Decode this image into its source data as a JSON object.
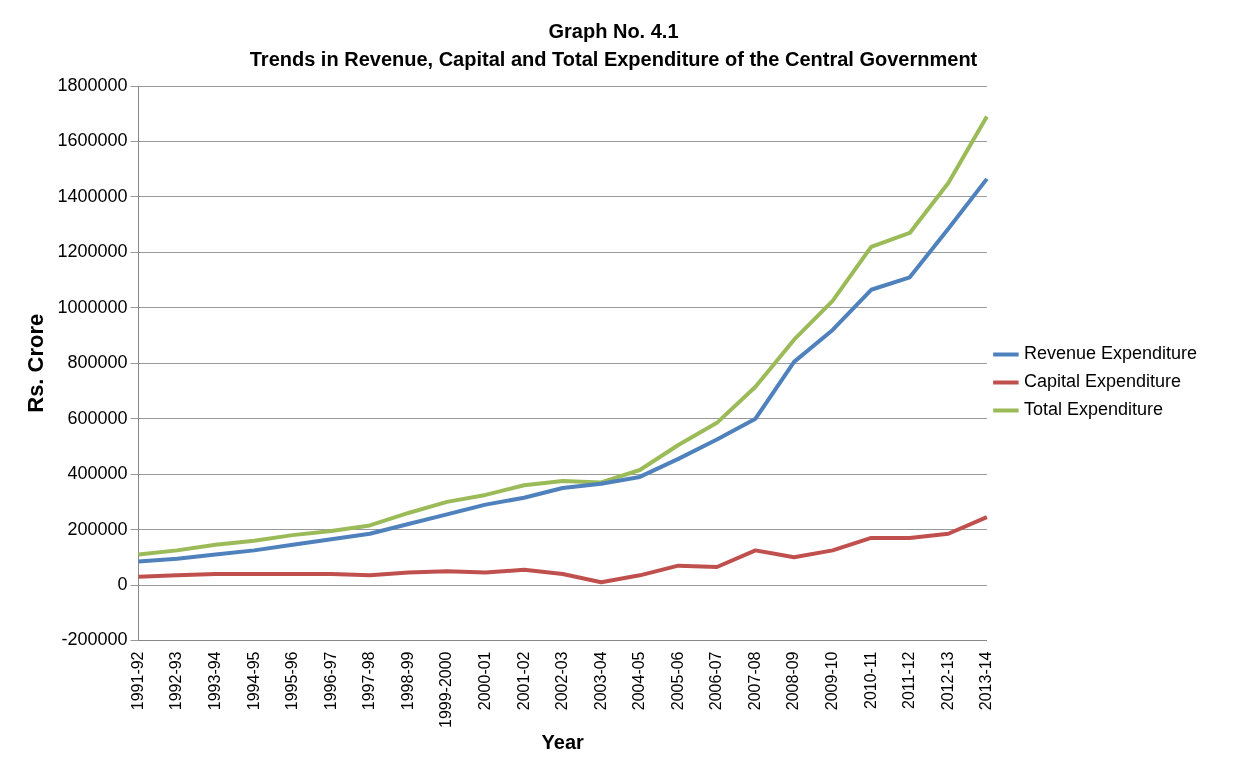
{
  "chart_data": {
    "type": "line",
    "title": "Graph No. 4.1",
    "subtitle": "Trends in Revenue, Capital and Total Expenditure of the Central Government",
    "xlabel": "Year",
    "ylabel": "Rs. Crore",
    "categories": [
      "1991-92",
      "1992-93",
      "1993-94",
      "1994-95",
      "1995-96",
      "1996-97",
      "1997-98",
      "1998-99",
      "1999-2000",
      "2000-01",
      "2001-02",
      "2002-03",
      "2003-04",
      "2004-05",
      "2005-06",
      "2006-07",
      "2007-08",
      "2008-09",
      "2009-10",
      "2010-11",
      "2011-12",
      "2012-13",
      "2013-14"
    ],
    "series": [
      {
        "name": "Revenue Expenditure",
        "color": "#4f81bd",
        "values": [
          85000,
          95000,
          110000,
          125000,
          145000,
          165000,
          185000,
          220000,
          255000,
          290000,
          315000,
          350000,
          365000,
          390000,
          455000,
          525000,
          600000,
          805000,
          920000,
          1065000,
          1110000,
          1285000,
          1465000
        ]
      },
      {
        "name": "Capital Expenditure",
        "color": "#c0504d",
        "values": [
          30000,
          35000,
          40000,
          40000,
          40000,
          40000,
          35000,
          45000,
          50000,
          45000,
          55000,
          40000,
          10000,
          35000,
          70000,
          65000,
          125000,
          100000,
          125000,
          170000,
          170000,
          185000,
          245000
        ]
      },
      {
        "name": "Total Expenditure",
        "color": "#9bbb59",
        "values": [
          110000,
          125000,
          145000,
          160000,
          180000,
          195000,
          215000,
          260000,
          300000,
          325000,
          360000,
          375000,
          370000,
          415000,
          505000,
          585000,
          715000,
          885000,
          1025000,
          1220000,
          1270000,
          1450000,
          1690000
        ]
      }
    ],
    "ylim": [
      -200000,
      1800000
    ],
    "yticks": [
      -200000,
      0,
      200000,
      400000,
      600000,
      800000,
      1000000,
      1200000,
      1400000,
      1600000,
      1800000
    ],
    "grid": "y",
    "legend": "right",
    "marker": "none",
    "line_style": "solid"
  }
}
